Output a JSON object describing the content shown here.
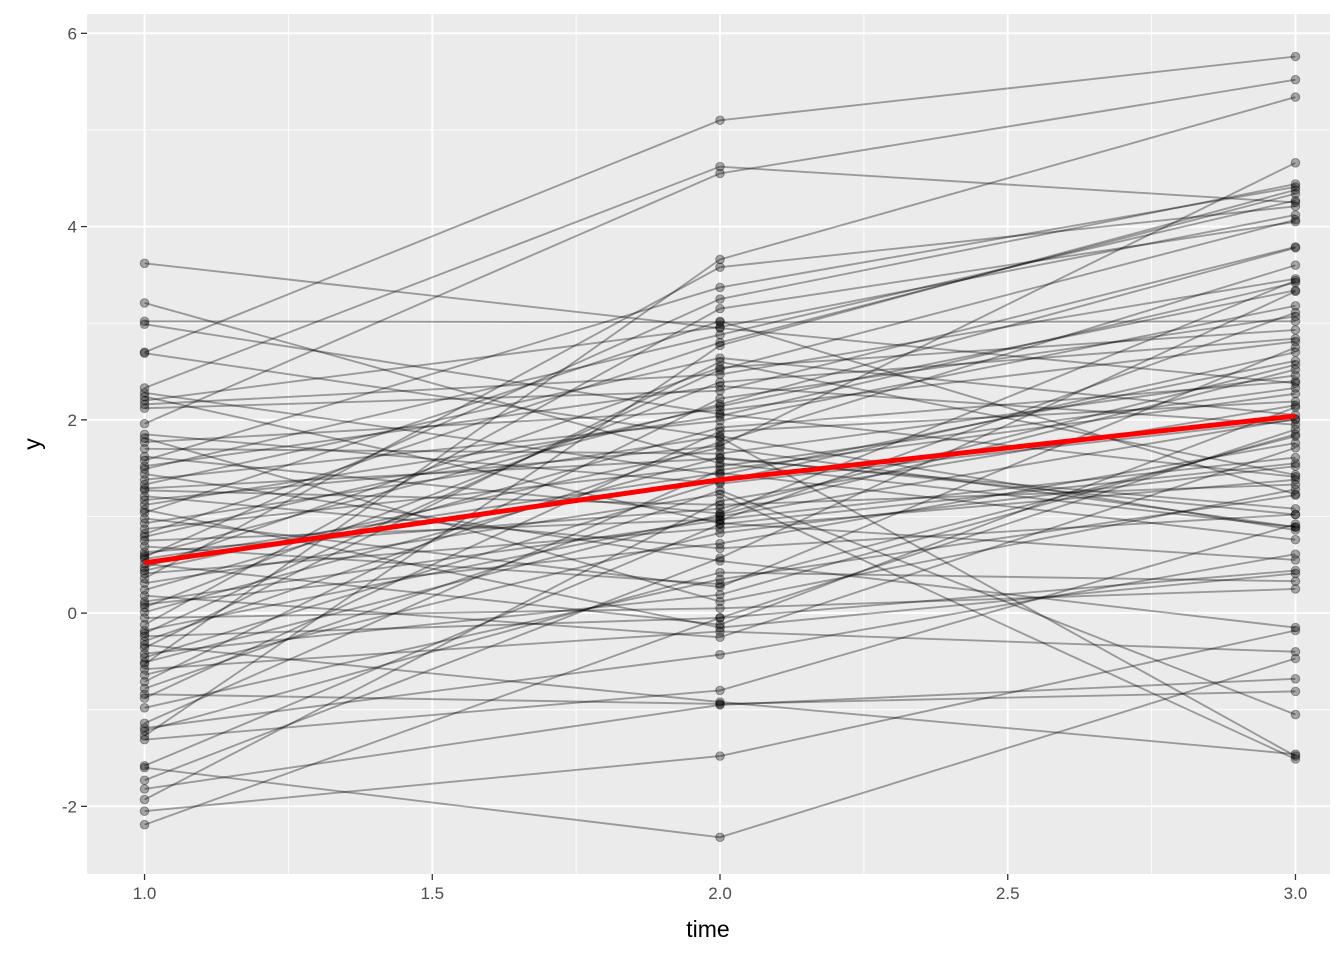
{
  "chart_data": {
    "type": "line",
    "title": "",
    "xlabel": "time",
    "ylabel": "y",
    "xlim": [
      0.9,
      3.06
    ],
    "ylim": [
      -2.7,
      6.2
    ],
    "x_ticks": [
      1.0,
      1.5,
      2.0,
      2.5,
      3.0
    ],
    "x_tick_labels": [
      "1.0",
      "1.5",
      "2.0",
      "2.5",
      "3.0"
    ],
    "y_ticks": [
      -2,
      0,
      2,
      4,
      6
    ],
    "y_tick_labels": [
      "-2",
      "0",
      "2",
      "4",
      "6"
    ],
    "grid": true,
    "legend": "none",
    "colors": {
      "panel": "#ebebeb",
      "grid": "#ffffff",
      "individual": "#000000",
      "trend": "#ff0000",
      "tick_text": "#4d4d4d",
      "tick_mark": "#333333"
    },
    "x": [
      1,
      2,
      3
    ],
    "individual_series": [
      [
        3.62,
        2.95,
        2.38
      ],
      [
        3.21,
        1.55,
        0.89
      ],
      [
        3.02,
        3.01,
        3.02
      ],
      [
        2.99,
        2.06,
        1.41
      ],
      [
        2.7,
        5.1,
        5.76
      ],
      [
        2.69,
        1.82,
        -1.48
      ],
      [
        2.33,
        4.62,
        4.25
      ],
      [
        2.28,
        1.43,
        2.61
      ],
      [
        2.24,
        0.93,
        0.55
      ],
      [
        2.2,
        2.96,
        4.12
      ],
      [
        2.12,
        2.3,
        3.79
      ],
      [
        1.96,
        4.55,
        5.52
      ],
      [
        1.81,
        0.12,
        1.28
      ],
      [
        1.77,
        2.1,
        2.81
      ],
      [
        1.7,
        1.65,
        2.46
      ],
      [
        1.62,
        1.03,
        3.44
      ],
      [
        1.58,
        3.37,
        4.41
      ],
      [
        1.52,
        2.35,
        1.95
      ],
      [
        1.44,
        0.54,
        -0.15
      ],
      [
        1.38,
        1.99,
        3.18
      ],
      [
        1.33,
        2.64,
        2.05
      ],
      [
        1.27,
        1.12,
        1.33
      ],
      [
        1.21,
        0.67,
        1.02
      ],
      [
        1.17,
        1.73,
        4.66
      ],
      [
        1.12,
        2.04,
        3.42
      ],
      [
        1.04,
        3.02,
        1.23
      ],
      [
        0.98,
        0.27,
        2.75
      ],
      [
        0.93,
        1.83,
        0.86
      ],
      [
        0.87,
        1.52,
        2.33
      ],
      [
        0.82,
        2.8,
        4.34
      ],
      [
        0.75,
        0.97,
        1.61
      ],
      [
        0.69,
        0.3,
        1.83
      ],
      [
        0.63,
        1.08,
        2.57
      ],
      [
        0.6,
        2.16,
        3.78
      ],
      [
        0.56,
        1.45,
        0.76
      ],
      [
        0.51,
        -0.12,
        2.13
      ],
      [
        0.47,
        2.54,
        2.93
      ],
      [
        0.41,
        0.88,
        1.38
      ],
      [
        0.36,
        3.58,
        4.21
      ],
      [
        0.31,
        1.23,
        -1.51
      ],
      [
        0.24,
        1.92,
        2.4
      ],
      [
        0.18,
        -0.25,
        1.71
      ],
      [
        0.12,
        0.96,
        3.11
      ],
      [
        0.06,
        2.39,
        2.84
      ],
      [
        0.01,
        1.61,
        1.02
      ],
      [
        -0.05,
        0.05,
        0.25
      ],
      [
        -0.12,
        3.15,
        4.05
      ],
      [
        -0.18,
        1.0,
        2.01
      ],
      [
        -0.24,
        -0.05,
        0.44
      ],
      [
        -0.29,
        1.77,
        3.6
      ],
      [
        -0.36,
        2.6,
        1.43
      ],
      [
        -0.42,
        0.19,
        1.85
      ],
      [
        -0.46,
        1.36,
        2.7
      ],
      [
        -0.53,
        3.66,
        5.34
      ],
      [
        -0.58,
        -0.19,
        -0.4
      ],
      [
        -0.64,
        0.83,
        1.52
      ],
      [
        -0.71,
        2.22,
        3.07
      ],
      [
        -0.78,
        1.27,
        -1.05
      ],
      [
        -0.84,
        -0.94,
        -0.81
      ],
      [
        -0.98,
        0.35,
        1.22
      ],
      [
        -1.14,
        1.48,
        2.27
      ],
      [
        -1.19,
        -0.43,
        0.61
      ],
      [
        -1.27,
        2.77,
        4.38
      ],
      [
        -1.31,
        -0.8,
        0.92
      ],
      [
        -1.58,
        0.92,
        1.55
      ],
      [
        -1.6,
        -2.32,
        -0.47
      ],
      [
        -1.73,
        0.57,
        3.33
      ],
      [
        -1.82,
        -0.95,
        -0.68
      ],
      [
        -1.93,
        1.16,
        2.15
      ],
      [
        -2.05,
        -1.48,
        -0.18
      ],
      [
        -2.19,
        -0.05,
        1.9
      ],
      [
        2.16,
        2.47,
        3.46
      ],
      [
        1.85,
        1.34,
        2.0
      ],
      [
        1.49,
        2.88,
        4.27
      ],
      [
        1.07,
        -0.15,
        0.41
      ],
      [
        0.79,
        2.14,
        3.34
      ],
      [
        0.44,
        1.71,
        0.89
      ],
      [
        0.09,
        0.72,
        1.76
      ],
      [
        -0.21,
        2.52,
        4.07
      ],
      [
        -0.51,
        1.02,
        2.52
      ],
      [
        -0.88,
        1.88,
        2.19
      ],
      [
        -1.22,
        0.42,
        0.33
      ],
      [
        1.29,
        1.6,
        1.08
      ],
      [
        0.58,
        3.25,
        4.44
      ],
      [
        -0.33,
        -0.92,
        -1.46
      ]
    ],
    "trend_line": {
      "x": [
        1,
        2,
        3
      ],
      "y": [
        0.52,
        1.38,
        2.04
      ]
    }
  }
}
